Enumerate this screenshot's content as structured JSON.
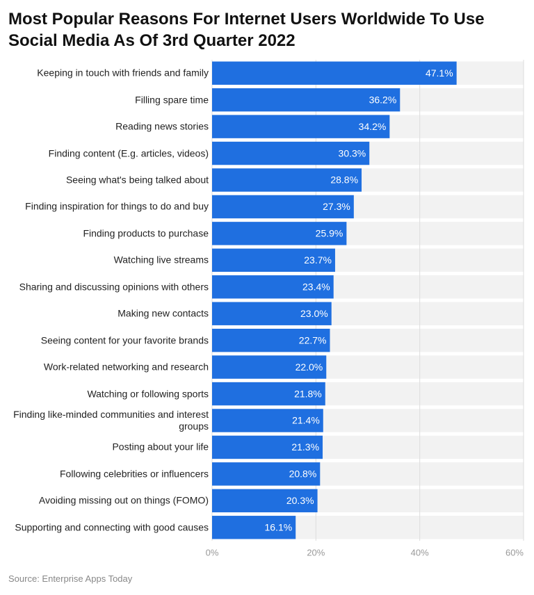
{
  "chart_data": {
    "type": "barh",
    "title": "Most Popular Reasons For Internet Users Worldwide To Use Social Media As Of 3rd Quarter 2022",
    "categories": [
      "Keeping in touch with friends and family",
      "Filling spare time",
      "Reading news stories",
      "Finding content (E.g. articles, videos)",
      "Seeing what's being talked about",
      "Finding inspiration for things to do and buy",
      "Finding products to purchase",
      "Watching live streams",
      "Sharing and discussing opinions with others",
      "Making new contacts",
      "Seeing content for your favorite brands",
      "Work-related networking and research",
      "Watching or following sports",
      "Finding like-minded communities and interest groups",
      "Posting about your life",
      "Following celebrities or influencers",
      "Avoiding missing out on things (FOMO)",
      "Supporting and connecting with good causes"
    ],
    "values": [
      47.1,
      36.2,
      34.2,
      30.3,
      28.8,
      27.3,
      25.9,
      23.7,
      23.4,
      23.0,
      22.7,
      22.0,
      21.8,
      21.4,
      21.3,
      20.8,
      20.3,
      16.1
    ],
    "value_labels": [
      "47.1%",
      "36.2%",
      "34.2%",
      "30.3%",
      "28.8%",
      "27.3%",
      "25.9%",
      "23.7%",
      "23.4%",
      "23.0%",
      "22.7%",
      "22.0%",
      "21.8%",
      "21.4%",
      "21.3%",
      "20.8%",
      "20.3%",
      "16.1%"
    ],
    "color": "#1f6fe0",
    "xlim": [
      0,
      60
    ],
    "xticks": [
      {
        "value": 0,
        "label": "0%"
      },
      {
        "value": 20,
        "label": "20%"
      },
      {
        "value": 40,
        "label": "40%"
      },
      {
        "value": 60,
        "label": "60%"
      }
    ],
    "grid": true,
    "source": "Source: Enterprise Apps Today"
  }
}
